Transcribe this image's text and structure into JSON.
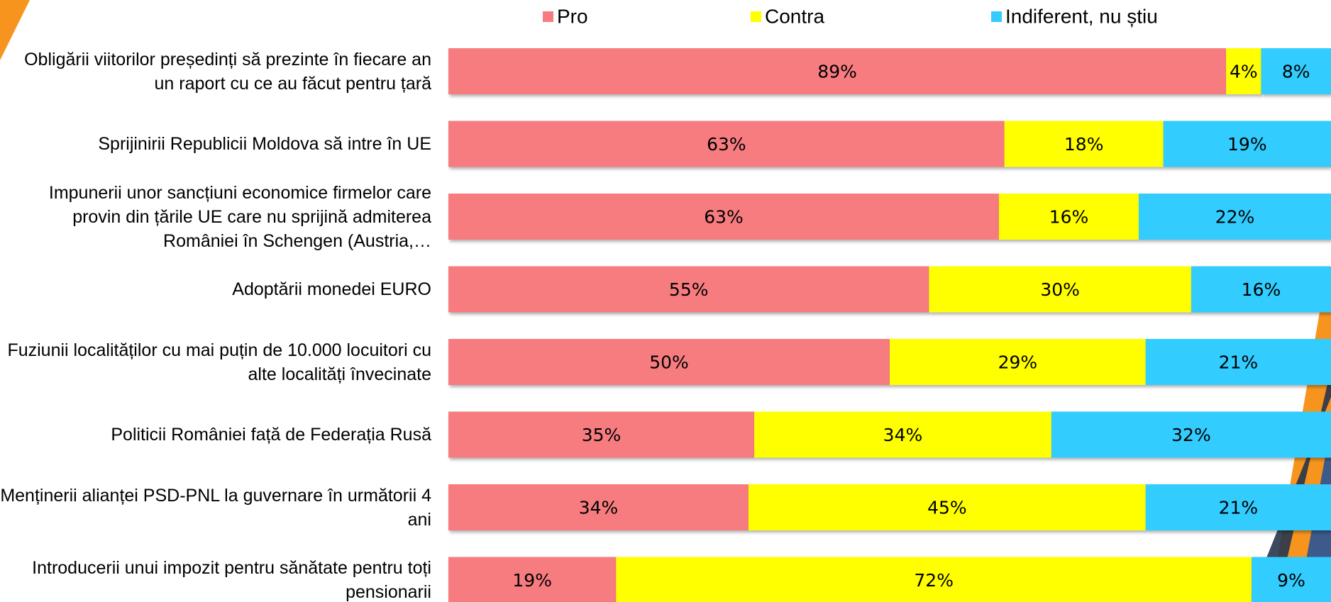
{
  "chart_data": {
    "type": "stacked-bar-100",
    "categories": [
      "Obligării viitorilor președinți să prezinte în fiecare an un raport cu ce au făcut pentru țară",
      "Sprijinirii Republicii Moldova să intre în UE",
      "Impunerii unor sancțiuni economice firmelor care provin din țările UE care nu sprijină admiterea României în Schengen (Austria,…",
      "Adoptării monedei EURO",
      "Fuziunii localităților cu mai puțin de 10.000 locuitori cu alte localități învecinate",
      "Politicii României față de Federația Rusă",
      "Menținerii alianței PSD-PNL la guvernare în următorii 4 ani",
      "Introducerii unui impozit pentru sănătate pentru toți pensionarii"
    ],
    "series": [
      {
        "name": "Pro",
        "color": "#f77b80",
        "values": [
          89,
          63,
          63,
          55,
          50,
          35,
          34,
          19
        ],
        "value_labels": [
          "89%",
          "63%",
          "63%",
          "55%",
          "50%",
          "35%",
          "34%",
          "19%"
        ]
      },
      {
        "name": "Contra",
        "color": "#ffff00",
        "values": [
          4,
          18,
          16,
          30,
          29,
          34,
          45,
          72
        ],
        "value_labels": [
          "4%",
          "18%",
          "16%",
          "30%",
          "29%",
          "34%",
          "45%",
          "72%"
        ]
      },
      {
        "name": "Indiferent, nu știu",
        "color": "#33ccff",
        "values": [
          8,
          19,
          22,
          16,
          21,
          32,
          21,
          9
        ],
        "value_labels": [
          "8%",
          "19%",
          "22%",
          "16%",
          "21%",
          "32%",
          "21%",
          "9%"
        ]
      }
    ]
  }
}
